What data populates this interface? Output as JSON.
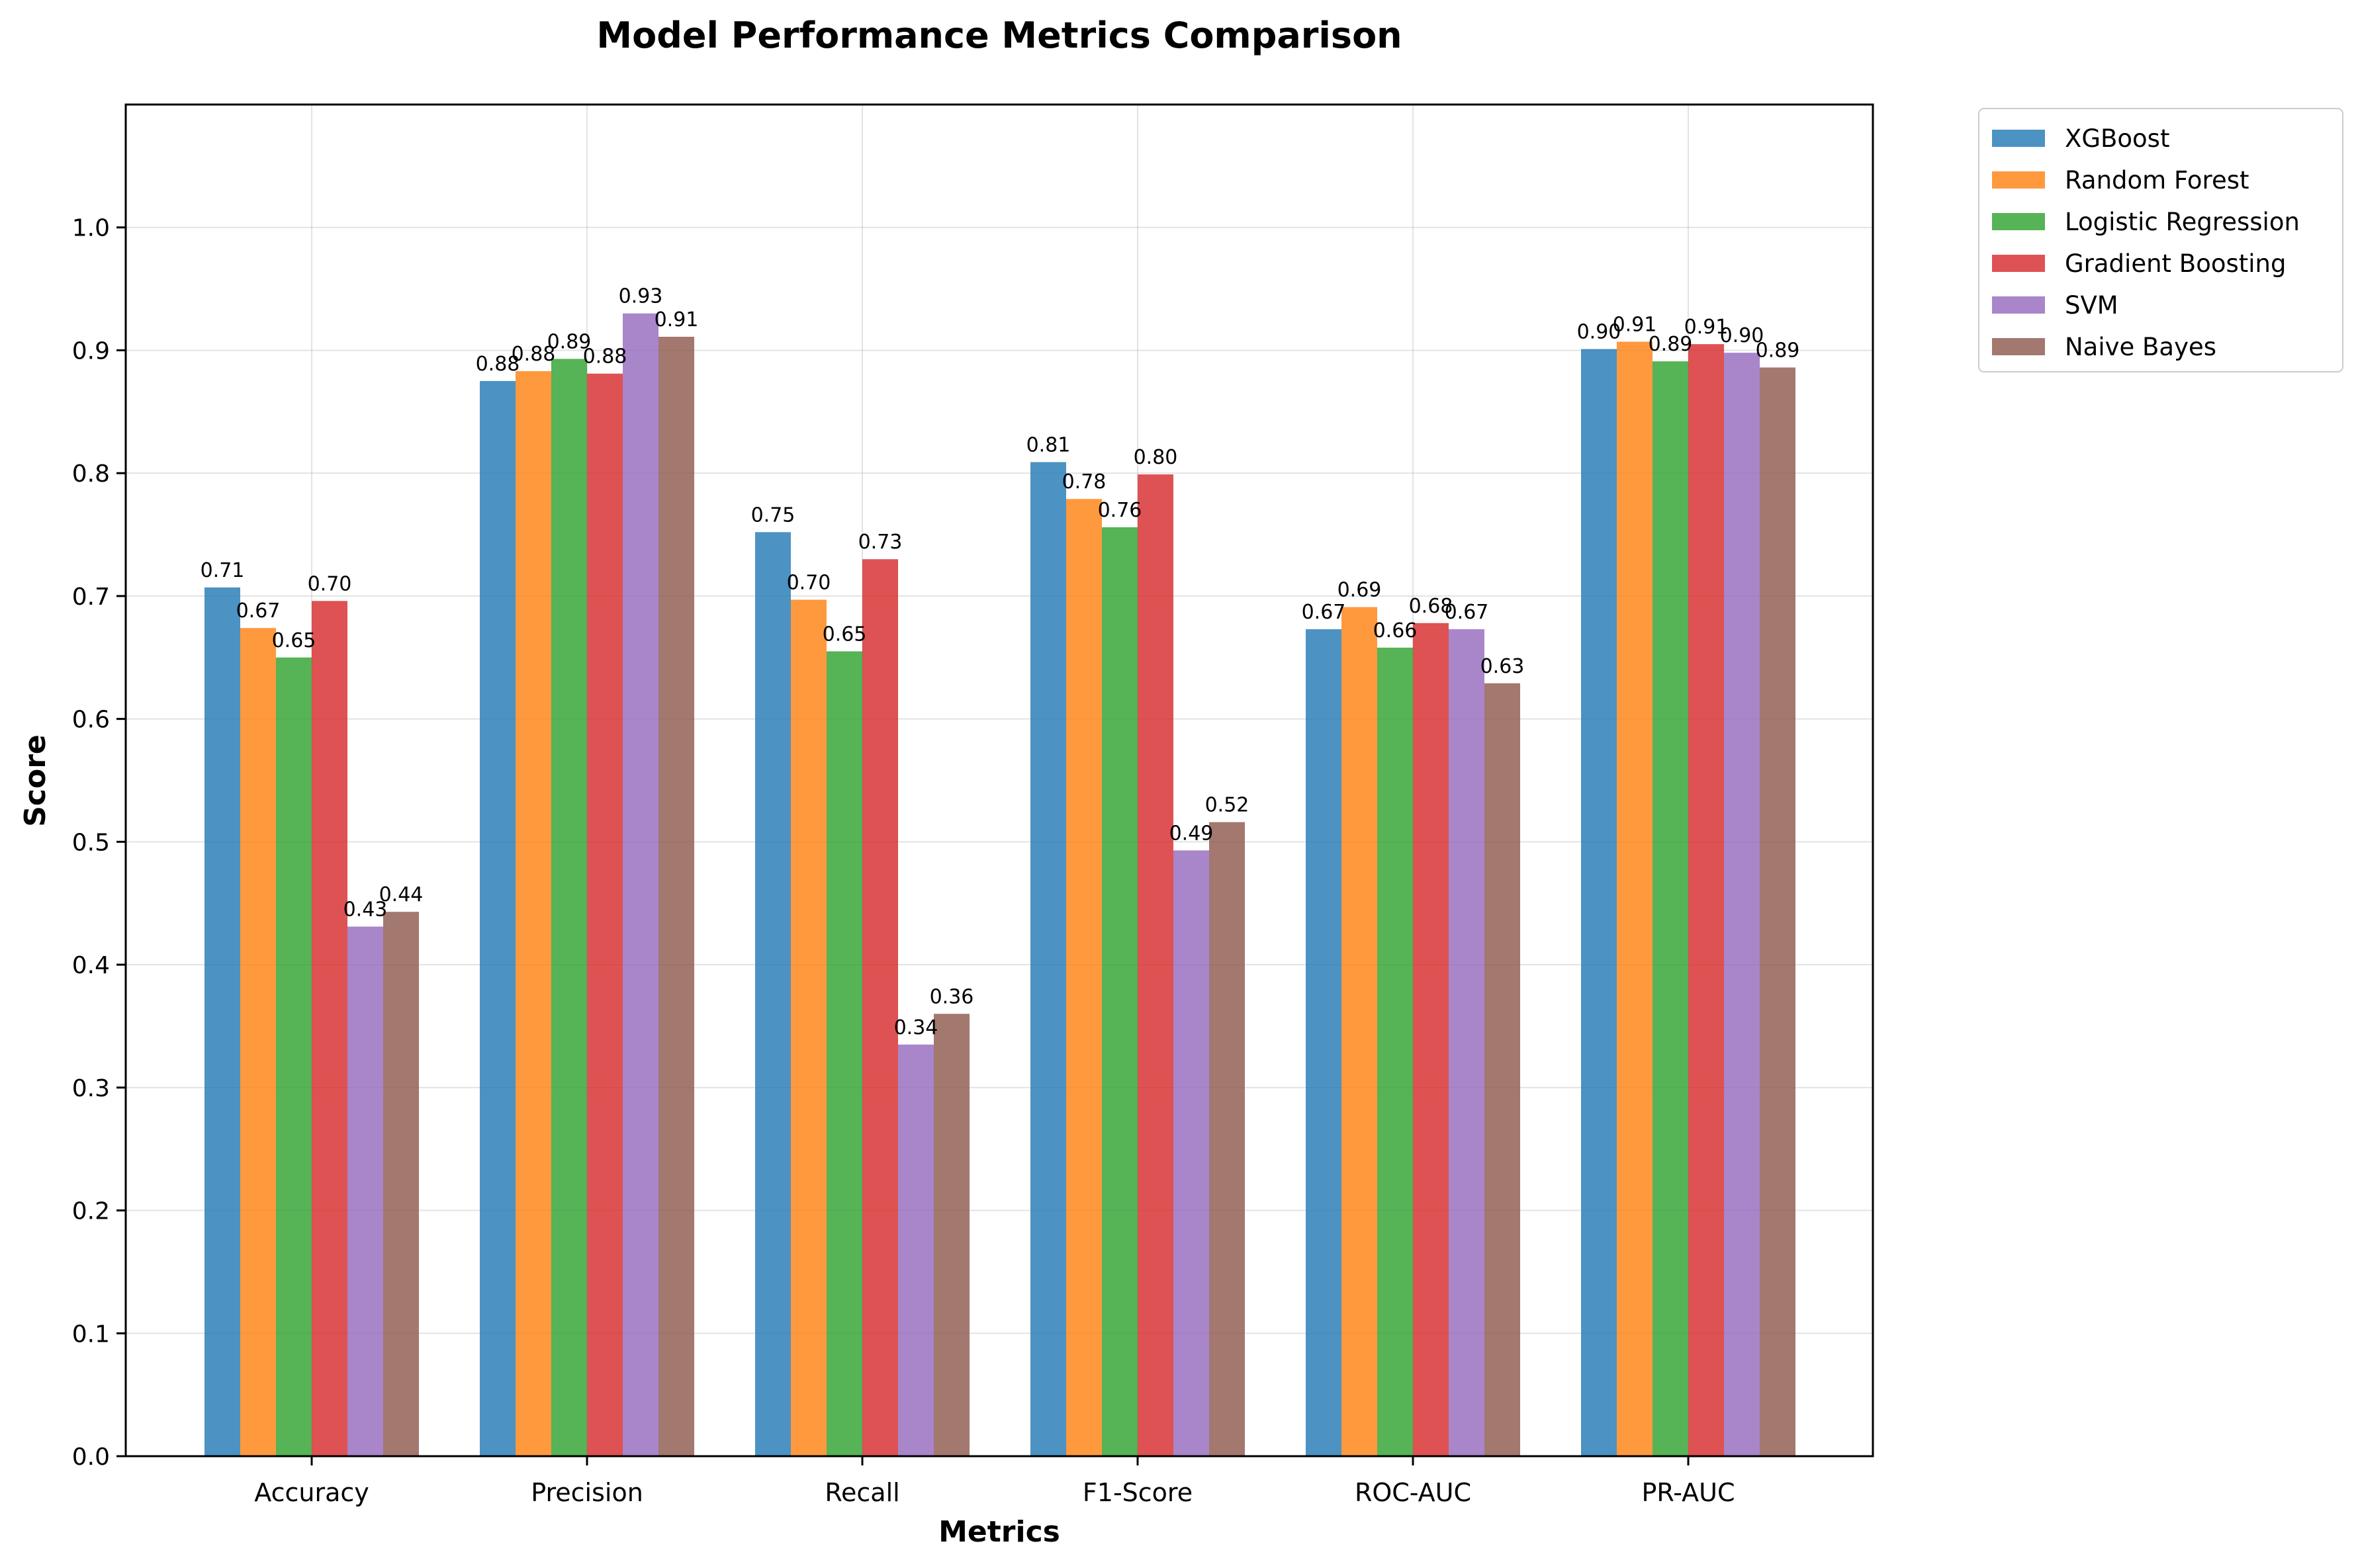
{
  "chart_data": {
    "type": "bar",
    "title": "Model Performance Metrics Comparison",
    "xlabel": "Metrics",
    "ylabel": "Score",
    "ylim": [
      0,
      1.1
    ],
    "yticks": [
      "0.0",
      "0.1",
      "0.2",
      "0.3",
      "0.4",
      "0.5",
      "0.6",
      "0.7",
      "0.8",
      "0.9",
      "1.0"
    ],
    "grid": true,
    "legend_position": "outside-top-right",
    "categories": [
      "Accuracy",
      "Precision",
      "Recall",
      "F1-Score",
      "ROC-AUC",
      "PR-AUC"
    ],
    "series": [
      {
        "name": "XGBoost",
        "color": "#1f77b4",
        "values": [
          0.707,
          0.875,
          0.752,
          0.809,
          0.673,
          0.901
        ],
        "labels": [
          "0.71",
          "0.88",
          "0.75",
          "0.81",
          "0.67",
          "0.90"
        ]
      },
      {
        "name": "Random Forest",
        "color": "#ff7f0e",
        "values": [
          0.674,
          0.883,
          0.697,
          0.779,
          0.691,
          0.907
        ],
        "labels": [
          "0.67",
          "0.88",
          "0.70",
          "0.78",
          "0.69",
          "0.91"
        ]
      },
      {
        "name": "Logistic Regression",
        "color": "#2ca02c",
        "values": [
          0.65,
          0.893,
          0.655,
          0.756,
          0.658,
          0.891
        ],
        "labels": [
          "0.65",
          "0.89",
          "0.65",
          "0.76",
          "0.66",
          "0.89"
        ]
      },
      {
        "name": "Gradient Boosting",
        "color": "#d62728",
        "values": [
          0.696,
          0.881,
          0.73,
          0.799,
          0.678,
          0.905
        ],
        "labels": [
          "0.70",
          "0.88",
          "0.73",
          "0.80",
          "0.68",
          "0.91"
        ]
      },
      {
        "name": "SVM",
        "color": "#9467bd",
        "values": [
          0.431,
          0.93,
          0.335,
          0.493,
          0.673,
          0.898
        ],
        "labels": [
          "0.43",
          "0.93",
          "0.34",
          "0.49",
          "0.67",
          "0.90"
        ]
      },
      {
        "name": "Naive Bayes",
        "color": "#8c564b",
        "values": [
          0.443,
          0.911,
          0.36,
          0.516,
          0.629,
          0.886
        ],
        "labels": [
          "0.44",
          "0.91",
          "0.36",
          "0.52",
          "0.63",
          "0.89"
        ]
      }
    ]
  }
}
